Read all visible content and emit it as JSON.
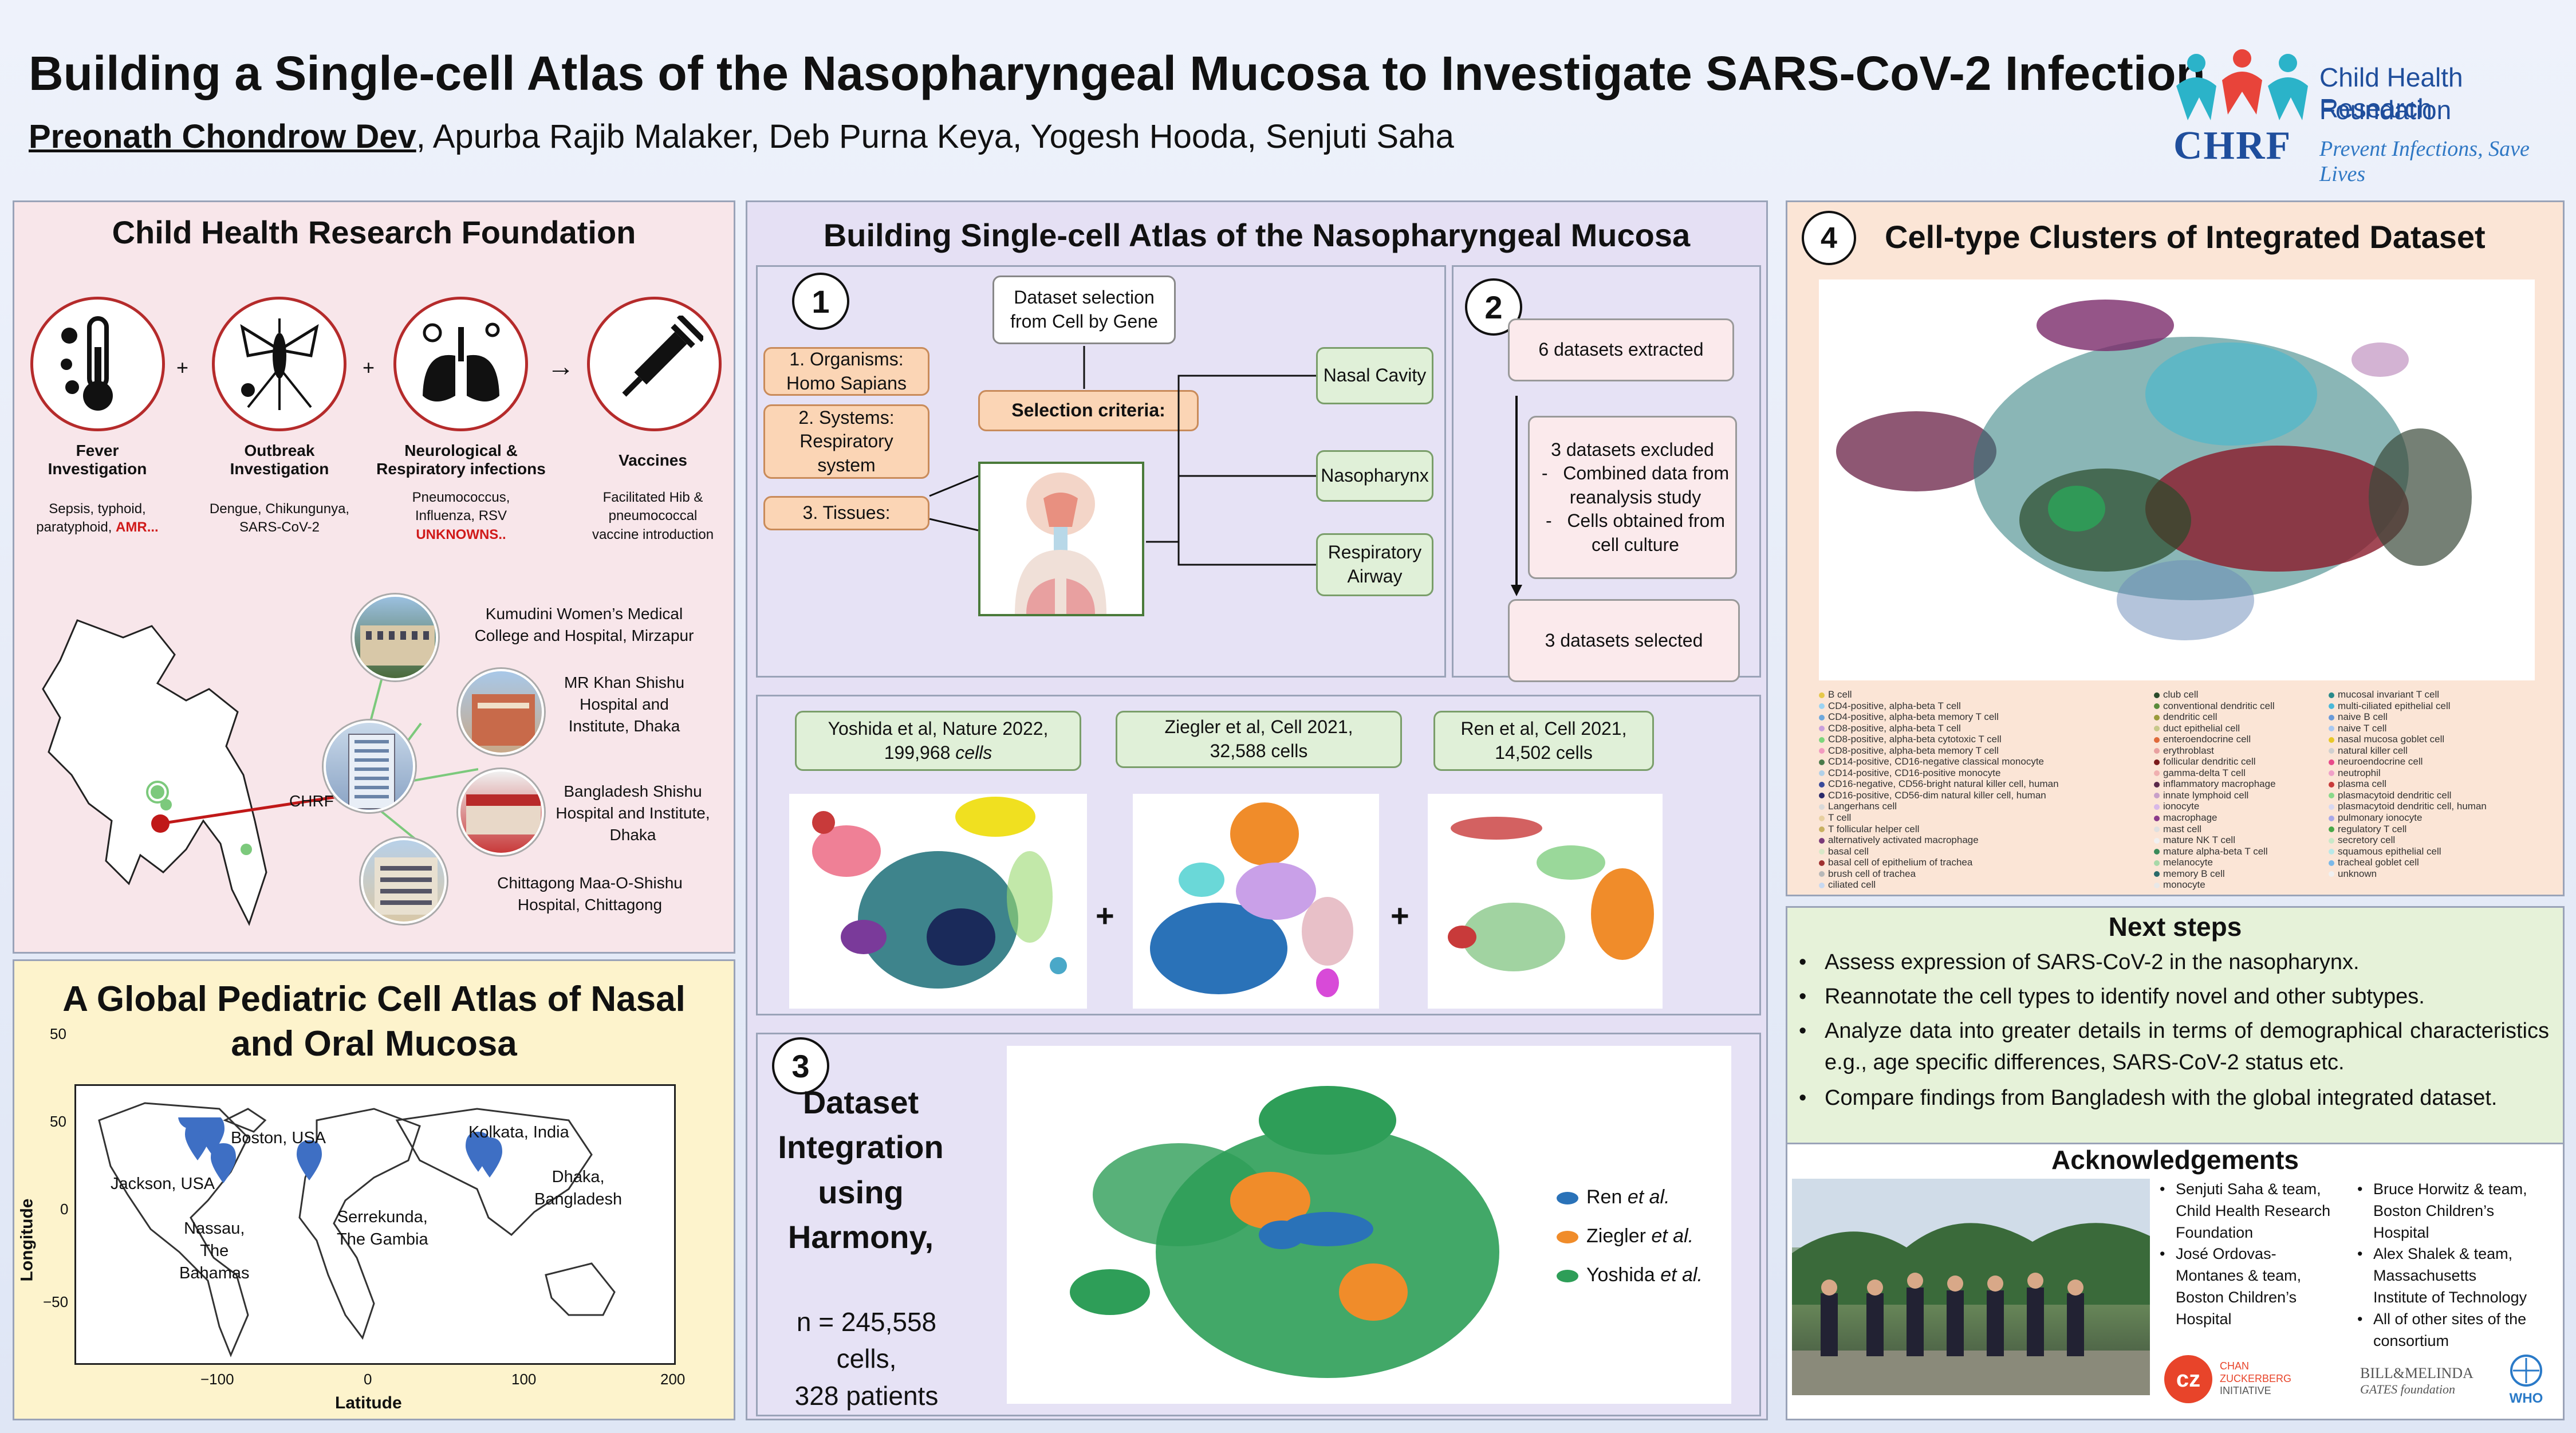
{
  "header": {
    "title": "Building a Single-cell Atlas of the Nasopharyngeal Mucosa to Investigate SARS-CoV-2 Infection",
    "first_author": "Preonath Chondrow Dev",
    "other_authors": ", Apurba Rajib Malaker, Deb Purna Keya, Yogesh Hooda, Senjuti Saha",
    "logo_name_line1": "Child Health Research",
    "logo_name_line2": "Foundation",
    "logo_abbr": "CHRF",
    "logo_tagline": "Prevent Infections, Save Lives"
  },
  "chrf_panel": {
    "title": "Child Health Research Foundation",
    "icons": [
      {
        "name": "thermometer-icon",
        "label_l1": "Fever",
        "label_l2": "Investigation",
        "desc_l1": "Sepsis, typhoid,",
        "desc_l2": "paratyphoid, ",
        "desc_red": "AMR..."
      },
      {
        "name": "mosquito-icon",
        "label_l1": "Outbreak",
        "label_l2": "Investigation",
        "desc_l1": "Dengue, Chikungunya,",
        "desc_l2": "SARS-CoV-2"
      },
      {
        "name": "lungs-icon",
        "label_l1": "Neurological &",
        "label_l2": "Respiratory infections",
        "desc_l1": "Pneumococcus,",
        "desc_l2": "Influenza, RSV",
        "desc_red": "UNKNOWNS.."
      },
      {
        "name": "syringe-icon",
        "label_l1": "Vaccines",
        "desc_l1": "Facilitated Hib &",
        "desc_l2": "pneumococcal",
        "desc_l3": "vaccine introduction"
      }
    ],
    "plus": "+",
    "arrow": "→",
    "hub_label": "CHRF",
    "hospitals": [
      {
        "l1": "Kumudini Women’s Medical",
        "l2": "College and Hospital, Mirzapur"
      },
      {
        "l1": "MR Khan Shishu",
        "l2": "Hospital and",
        "l3": "Institute, Dhaka"
      },
      {
        "l1": "Bangladesh Shishu",
        "l2": "Hospital and Institute,",
        "l3": "Dhaka"
      },
      {
        "l1": "Chittagong Maa-O-Shishu",
        "l2": "Hospital, Chittagong"
      }
    ]
  },
  "global_panel": {
    "title_l1": "A Global Pediatric Cell Atlas of Nasal",
    "title_l2": "and Oral Mucosa",
    "map": {
      "xlabel": "Latitude",
      "ylabel": "Longitude",
      "xticks": [
        "−100",
        "0",
        "100",
        "200"
      ],
      "yticks": [
        "50",
        "0",
        "−50"
      ],
      "sites": [
        {
          "label": "Boston, USA"
        },
        {
          "label": "Jackson, USA"
        },
        {
          "label_l1": "Nassau,",
          "label_l2": "The",
          "label_l3": "Bahamas"
        },
        {
          "label_l1": "Serrekunda,",
          "label_l2": "The Gambia"
        },
        {
          "label": "Kolkata, India"
        },
        {
          "label_l1": "Dhaka,",
          "label_l2": "Bangladesh"
        }
      ]
    }
  },
  "build_panel": {
    "title": "Building Single-cell Atlas of the Nasopharyngeal Mucosa",
    "step1": {
      "num": "1",
      "dataset_selection": "Dataset selection from Cell by Gene",
      "selection_criteria": "Selection criteria:",
      "organisms": "1. Organisms: Homo Sapians",
      "systems": "2. Systems: Respiratory system",
      "tissues": "3. Tissues:",
      "targets": [
        "Nasal Cavity",
        "Nasopharynx",
        "Respiratory Airway"
      ]
    },
    "step2": {
      "num": "2",
      "extracted": "6 datasets extracted",
      "excluded_title": "3 datasets excluded",
      "excluded_items": [
        "Combined data from reanalysis study",
        "Cells obtained from cell culture"
      ],
      "selected": "3 datasets selected"
    },
    "datasets": [
      {
        "l1": "Yoshida et al, Nature 2022,",
        "l2": "199,968",
        "l2b": " cells"
      },
      {
        "l1": "Ziegler et al, Cell 2021,",
        "l2": "32,588 cells"
      },
      {
        "l1": "Ren et al, Cell 2021,",
        "l2": "14,502 cells"
      }
    ],
    "plus": "+",
    "step3": {
      "num": "3",
      "title_l1": "Dataset",
      "title_l2": "Integration",
      "title_l3": "using",
      "title_l4": "Harmony,",
      "n_l1": "n = 245,558 cells,",
      "n_l2": "328 patients",
      "legend": [
        {
          "name": "Ren",
          "etal": " et al.",
          "color": "#2a72b8"
        },
        {
          "name": "Ziegler",
          "etal": " et al.",
          "color": "#f08c2a"
        },
        {
          "name": "Yoshida",
          "etal": " et al.",
          "color": "#2e9e58"
        }
      ]
    }
  },
  "clusters_panel": {
    "num": "4",
    "title": "Cell-type Clusters of Integrated Dataset",
    "legend_col1": [
      {
        "t": "B cell",
        "c": "#e6c84a"
      },
      {
        "t": "CD4-positive, alpha-beta T cell",
        "c": "#9bd3f2"
      },
      {
        "t": "CD4-positive, alpha-beta memory T cell",
        "c": "#6fa8dc"
      },
      {
        "t": "CD8-positive, alpha-beta T cell",
        "c": "#c9a0dc"
      },
      {
        "t": "CD8-positive, alpha-beta cytotoxic T cell",
        "c": "#7cd67c"
      },
      {
        "t": "CD8-positive, alpha-beta memory T cell",
        "c": "#f29ac0"
      },
      {
        "t": "CD14-positive, CD16-negative classical monocyte",
        "c": "#4a7a4a"
      },
      {
        "t": "CD14-positive, CD16-positive monocyte",
        "c": "#b0d0e8"
      },
      {
        "t": "CD16-negative, CD56-bright natural killer cell, human",
        "c": "#3a4a9a"
      },
      {
        "t": "CD16-positive, CD56-dim natural killer cell, human",
        "c": "#2a2a6a"
      },
      {
        "t": "Langerhans cell",
        "c": "#d9d9d9"
      },
      {
        "t": "T cell",
        "c": "#e8d0a0"
      },
      {
        "t": "T follicular helper cell",
        "c": "#c8b060"
      },
      {
        "t": "alternatively activated macrophage",
        "c": "#7a3a7a"
      },
      {
        "t": "basal cell",
        "c": "#d8e8c8"
      },
      {
        "t": "basal cell of epithelium of trachea",
        "c": "#a03030"
      },
      {
        "t": "brush cell of trachea",
        "c": "#b8b8b8"
      },
      {
        "t": "ciliated cell",
        "c": "#c8d8f0"
      }
    ],
    "legend_col2": [
      {
        "t": "club cell",
        "c": "#2a4a2a"
      },
      {
        "t": "conventional dendritic cell",
        "c": "#5a8a3a"
      },
      {
        "t": "dendritic cell",
        "c": "#9a9a3a"
      },
      {
        "t": "duct epithelial cell",
        "c": "#c8c88a"
      },
      {
        "t": "enteroendocrine cell",
        "c": "#e06a3a"
      },
      {
        "t": "erythroblast",
        "c": "#e8a0a0"
      },
      {
        "t": "follicular dendritic cell",
        "c": "#7a1a1a"
      },
      {
        "t": "gamma-delta T cell",
        "c": "#f0b0b0"
      },
      {
        "t": "inflammatory macrophage",
        "c": "#5a2a4a"
      },
      {
        "t": "innate lymphoid cell",
        "c": "#c8a0c8"
      },
      {
        "t": "ionocyte",
        "c": "#d8b8e8"
      },
      {
        "t": "macrophage",
        "c": "#8a3a8a"
      },
      {
        "t": "mast cell",
        "c": "#e0e0e0"
      },
      {
        "t": "mature NK T cell",
        "c": "#f0f0f0"
      },
      {
        "t": "mature alpha-beta T cell",
        "c": "#3a8a5a"
      },
      {
        "t": "melanocyte",
        "c": "#a8d8a8"
      },
      {
        "t": "memory B cell",
        "c": "#2a6a6a"
      },
      {
        "t": "monocyte",
        "c": "#e8e8e8"
      }
    ],
    "legend_col3": [
      {
        "t": "mucosal invariant T cell",
        "c": "#2a8a8a"
      },
      {
        "t": "multi-ciliated epithelial cell",
        "c": "#4ab8d8"
      },
      {
        "t": "naive B cell",
        "c": "#6a9ad8"
      },
      {
        "t": "naive T cell",
        "c": "#a8c8f0"
      },
      {
        "t": "nasal mucosa goblet cell",
        "c": "#e8c828"
      },
      {
        "t": "natural killer cell",
        "c": "#d0d0d0"
      },
      {
        "t": "neuroendocrine cell",
        "c": "#e84a8a"
      },
      {
        "t": "neutrophil",
        "c": "#f0a0c8"
      },
      {
        "t": "plasma cell",
        "c": "#c83a3a"
      },
      {
        "t": "plasmacytoid dendritic cell",
        "c": "#8ad88a"
      },
      {
        "t": "plasmacytoid dendritic cell, human",
        "c": "#d8d8f0"
      },
      {
        "t": "pulmonary ionocyte",
        "c": "#a8a8e8"
      },
      {
        "t": "regulatory T cell",
        "c": "#48a848"
      },
      {
        "t": "secretory cell",
        "c": "#c8e8c8"
      },
      {
        "t": "squamous epithelial cell",
        "c": "#b8e8e8"
      },
      {
        "t": "tracheal goblet cell",
        "c": "#7ab8e8"
      },
      {
        "t": "unknown",
        "c": "#f0f0f0"
      }
    ]
  },
  "next_steps": {
    "title": "Next  steps",
    "bullet": "•",
    "items": [
      "Assess expression of SARS-CoV-2 in the nasopharynx.",
      "Reannotate the cell types to identify novel and other subtypes.",
      "Analyze data into greater details in terms of demographical characteristics e.g., age specific differences, SARS-CoV-2 status etc.",
      "Compare findings from Bangladesh with the global integrated dataset."
    ]
  },
  "acknowledgements": {
    "title": "Acknowledgements",
    "col1": [
      {
        "l1": "Senjuti Saha & team,",
        "l2": "Child Health Research",
        "l3": "Foundation"
      },
      {
        "l1": "José Ordovas-",
        "l2": "Montanes & team,",
        "l3": "Boston Children’s",
        "l4": "Hospital"
      }
    ],
    "col2": [
      {
        "l1": "Bruce Horwitz & team,",
        "l2": "Boston Children’s",
        "l3": "Hospital"
      },
      {
        "l1": "Alex Shalek & team,",
        "l2": "Massachusetts",
        "l3": "Institute of Technology"
      },
      {
        "l1": "All of other sites of the",
        "l2": "consortium"
      }
    ],
    "funders": {
      "czi_l1": "CHAN",
      "czi_l2": "ZUCKERBERG",
      "czi_l3": "INITIATIVE",
      "gates_l1": "BILL&MELINDA",
      "gates_l2": "GATES foundation",
      "who": "WHO"
    }
  },
  "colors": {
    "chrf_bg": "#f8e6ea",
    "global_bg": "#fdf3cc",
    "build_bg": "#e5e0f4",
    "clusters_bg": "#fbe5d6",
    "next_bg": "#e6f2d9",
    "accent_red": "#b52b2b",
    "brand_blue": "#1f4e9c"
  }
}
